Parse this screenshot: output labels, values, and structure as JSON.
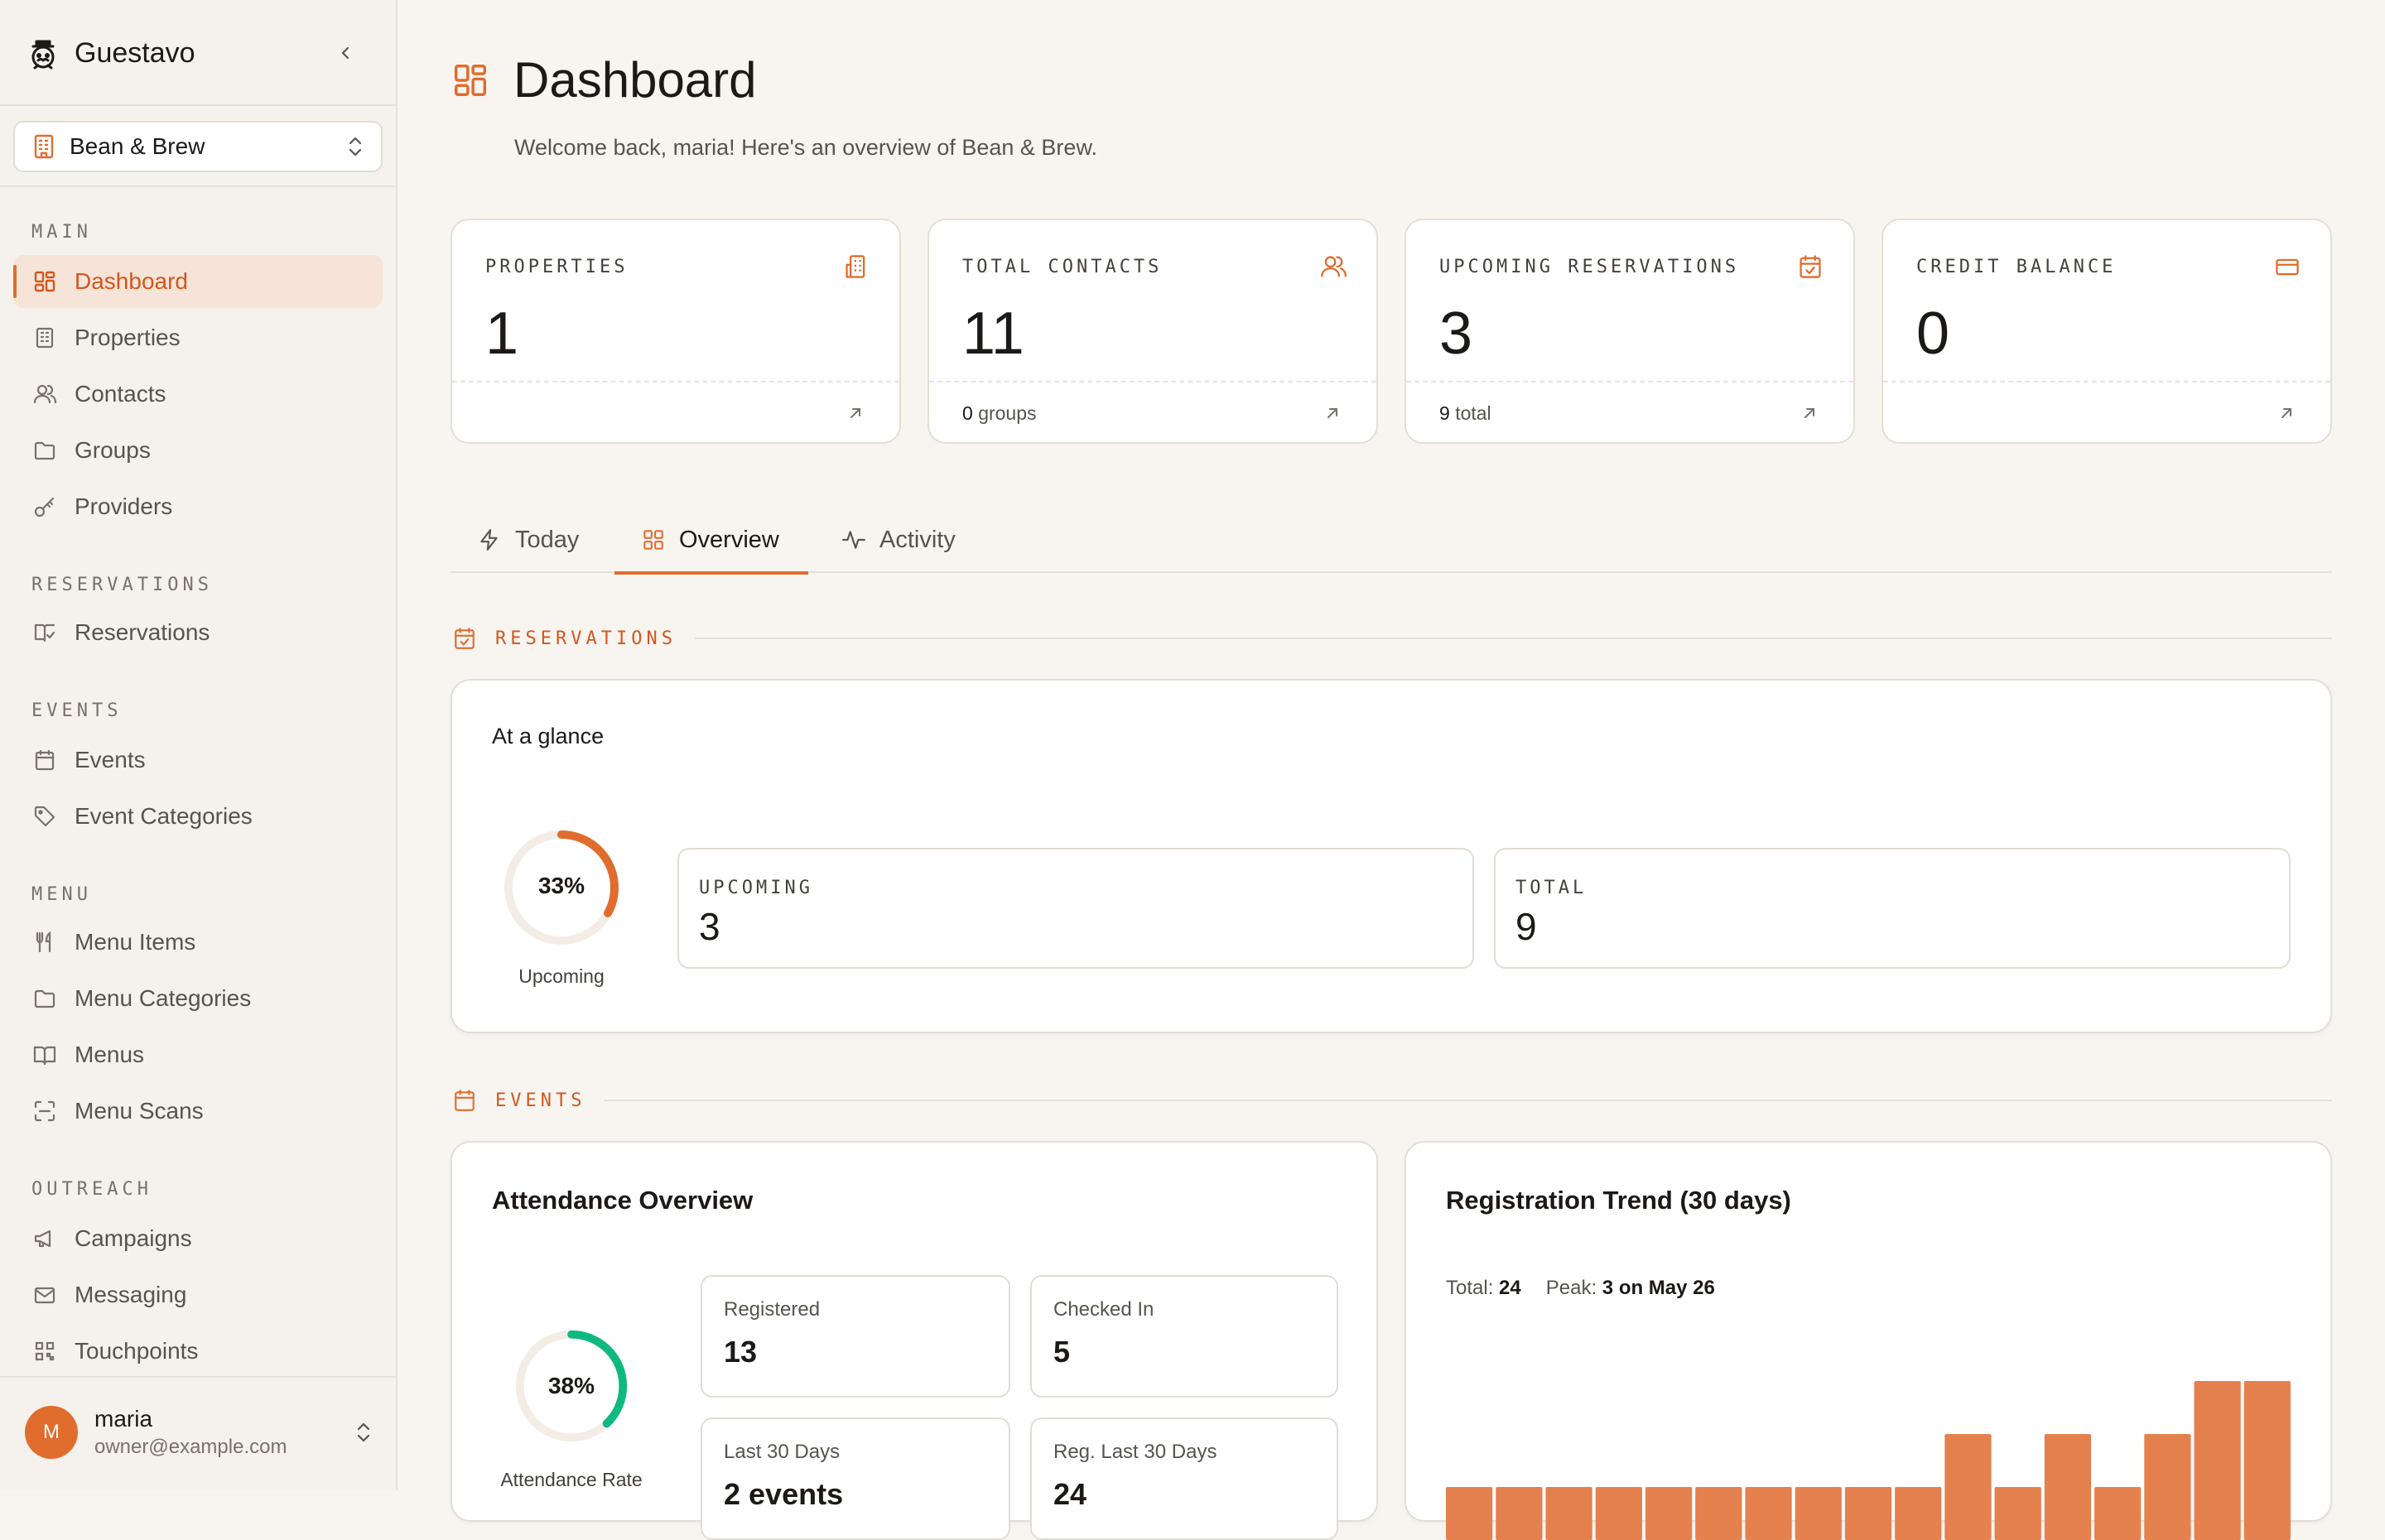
{
  "app": {
    "name": "Guestavo"
  },
  "property_selector": {
    "value": "Bean & Brew"
  },
  "nav": {
    "sections": [
      {
        "title": "MAIN",
        "items": [
          "Dashboard",
          "Properties",
          "Contacts",
          "Groups",
          "Providers"
        ]
      },
      {
        "title": "RESERVATIONS",
        "items": [
          "Reservations"
        ]
      },
      {
        "title": "EVENTS",
        "items": [
          "Events",
          "Event Categories"
        ]
      },
      {
        "title": "MENU",
        "items": [
          "Menu Items",
          "Menu Categories",
          "Menus",
          "Menu Scans"
        ]
      },
      {
        "title": "OUTREACH",
        "items": [
          "Campaigns",
          "Messaging",
          "Touchpoints"
        ]
      }
    ],
    "active": "Dashboard"
  },
  "user": {
    "initial": "M",
    "name": "maria",
    "email": "owner@example.com"
  },
  "page": {
    "title": "Dashboard",
    "subtitle": "Welcome back, maria! Here's an overview of Bean & Brew."
  },
  "stats": [
    {
      "label": "PROPERTIES",
      "value": "1",
      "foot_num": "",
      "foot_text": "",
      "icon": "building-icon"
    },
    {
      "label": "TOTAL CONTACTS",
      "value": "11",
      "foot_num": "0",
      "foot_text": "groups",
      "icon": "users-icon"
    },
    {
      "label": "UPCOMING RESERVATIONS",
      "value": "3",
      "foot_num": "9",
      "foot_text": "total",
      "icon": "calendar-check-icon"
    },
    {
      "label": "CREDIT BALANCE",
      "value": "0",
      "foot_num": "",
      "foot_text": "",
      "icon": "credit-card-icon"
    }
  ],
  "tabs": [
    {
      "label": "Today",
      "icon": "zap-icon"
    },
    {
      "label": "Overview",
      "icon": "grid-icon",
      "active": true
    },
    {
      "label": "Activity",
      "icon": "activity-icon"
    }
  ],
  "reservations": {
    "section_title": "RESERVATIONS",
    "card_title": "At a glance",
    "ring": {
      "percent": 33,
      "label_pct": "33%",
      "caption": "Upcoming"
    },
    "upcoming": {
      "label": "UPCOMING",
      "value": "3"
    },
    "total": {
      "label": "TOTAL",
      "value": "9"
    }
  },
  "events": {
    "section_title": "EVENTS",
    "attendance": {
      "title": "Attendance Overview",
      "ring": {
        "percent": 38,
        "label_pct": "38%",
        "caption": "Attendance Rate"
      },
      "cards": [
        {
          "label": "Registered",
          "value": "13"
        },
        {
          "label": "Checked In",
          "value": "5"
        },
        {
          "label": "Last 30 Days",
          "value": "2 events"
        },
        {
          "label": "Reg. Last 30 Days",
          "value": "24"
        }
      ]
    },
    "trend": {
      "title": "Registration Trend (30 days)",
      "total_label": "Total:",
      "total_value": "24",
      "peak_label": "Peak:",
      "peak_value": "3 on May 26"
    }
  },
  "colors": {
    "accent": "#e06c2e",
    "bar": "#e5804f",
    "attendance_ring": "#10b981",
    "ring_track": "#f3ede6"
  },
  "chart_data": {
    "type": "bar",
    "title": "Registration Trend (30 days)",
    "values": [
      1,
      1,
      1,
      1,
      1,
      1,
      1,
      1,
      1,
      1,
      2,
      1,
      2,
      1,
      2,
      3,
      3
    ],
    "ylim": [
      0,
      3
    ]
  }
}
